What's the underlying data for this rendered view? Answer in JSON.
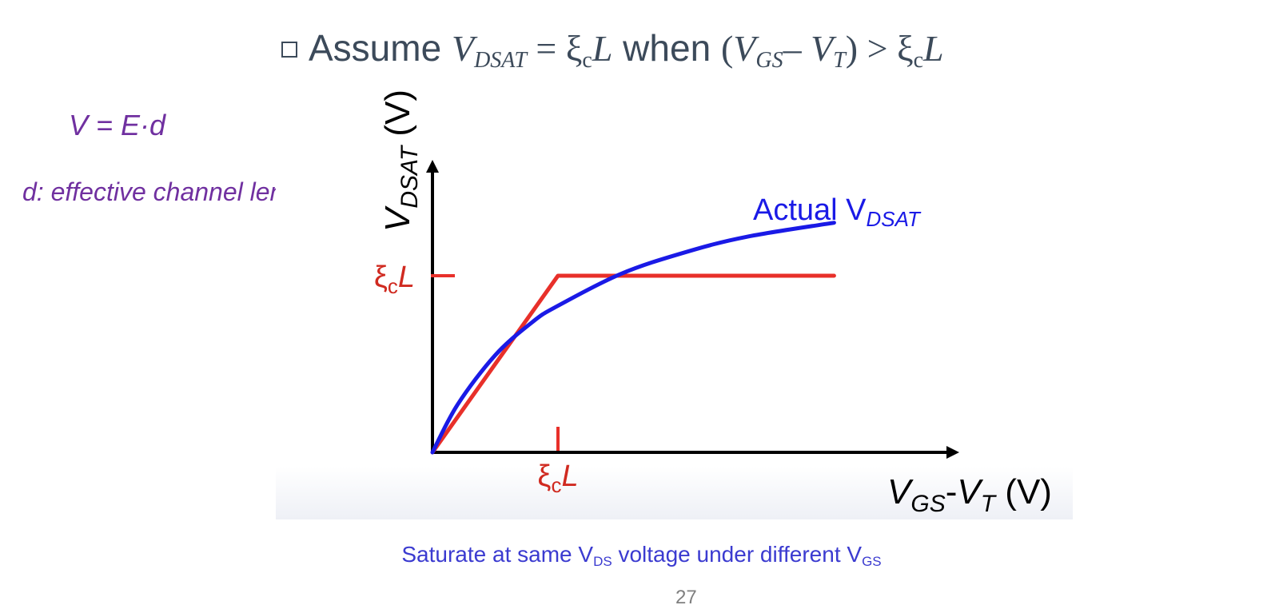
{
  "slide": {
    "title": {
      "prefix": "Assume ",
      "v": "V",
      "v_sub": "DSAT",
      "eq": " = ξ",
      "c": "c",
      "L": "L",
      "when": " when ",
      "paren_open": "(",
      "vgs": "V",
      "vgs_sub": "GS",
      "minus": "– ",
      "vt": "V",
      "vt_sub": "T",
      "paren_close": ")",
      "gt": " > ξ",
      "c2": "c",
      "L2": "L"
    },
    "note_formula": "V = E·d",
    "note_definition": "d: effective channel length",
    "caption": {
      "part1": "Saturate at same V",
      "sub1": "DS",
      "part2": " voltage under different V",
      "sub2": "GS"
    },
    "page_number": "27"
  },
  "chart_data": {
    "type": "line",
    "xlabel": {
      "main": "V",
      "sub1": "GS",
      "dash": "-",
      "main2": "V",
      "sub2": "T",
      "unit": " (V)"
    },
    "ylabel": {
      "main": "V",
      "sub": "DSAT",
      "unit": " (V)"
    },
    "x_tick": {
      "value": 1,
      "label": "ξ",
      "label_sub": "c",
      "label_italic": "L"
    },
    "y_tick": {
      "value": 1,
      "label": "ξ",
      "label_sub": "c",
      "label_italic": "L"
    },
    "xlim": [
      0,
      3.2
    ],
    "ylim": [
      0,
      1.66
    ],
    "series": [
      {
        "color": "#e8302a",
        "x": [
          0,
          1,
          3.2
        ],
        "y": [
          0,
          1,
          1
        ]
      },
      {
        "name": "Actual V",
        "name_sub": "DSAT",
        "color": "#1a1ae6",
        "x": [
          0,
          0.2,
          0.5,
          0.8,
          1.0,
          1.5,
          2.0,
          2.5,
          3.2
        ],
        "y": [
          0,
          0.27,
          0.55,
          0.74,
          0.83,
          1.01,
          1.13,
          1.22,
          1.3
        ]
      }
    ]
  }
}
